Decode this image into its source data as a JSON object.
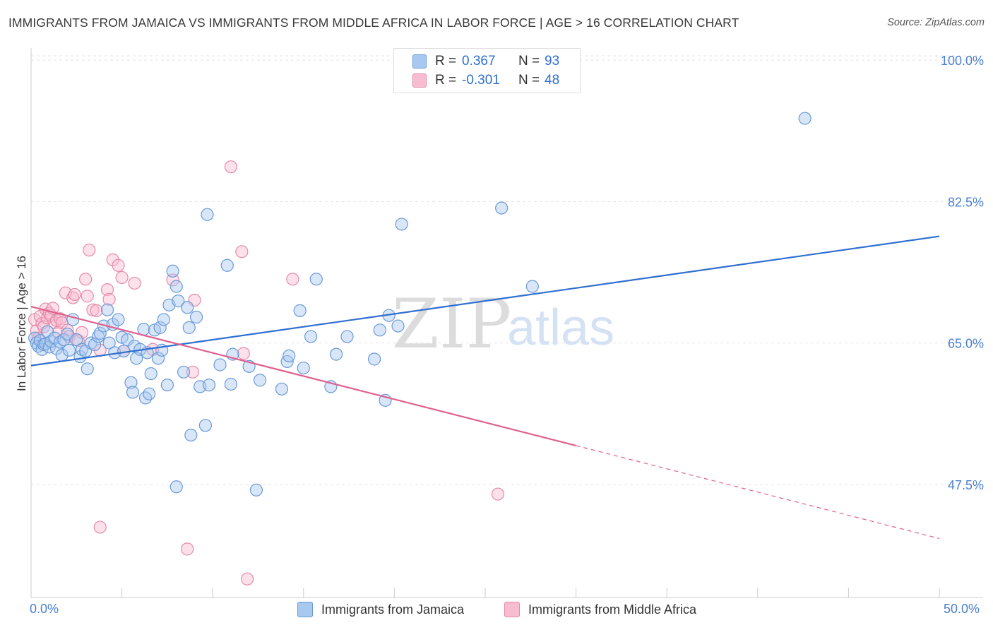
{
  "title": "IMMIGRANTS FROM JAMAICA VS IMMIGRANTS FROM MIDDLE AFRICA IN LABOR FORCE | AGE > 16 CORRELATION CHART",
  "source": "Source: ZipAtlas.com",
  "watermark": {
    "zip": "ZIP",
    "atlas": "atlas"
  },
  "legend": {
    "r_label": "R =",
    "n_label": "N =",
    "series": [
      {
        "name": "Immigrants from Jamaica",
        "r": "0.367",
        "n": "93",
        "fill": "#a8c8f0",
        "stroke": "#6a9ad8"
      },
      {
        "name": "Immigrants from Middle Africa",
        "r": "-0.301",
        "n": "48",
        "fill": "#f8bcd0",
        "stroke": "#e58aa8"
      }
    ]
  },
  "colors": {
    "blue": "#2f6fd0",
    "pink": "#e0608e",
    "tick_text": "#4a7fd0",
    "grid": "#e3e3e3"
  },
  "chart_data": {
    "type": "scatter",
    "title": "IMMIGRANTS FROM JAMAICA VS IMMIGRANTS FROM MIDDLE AFRICA IN LABOR FORCE | AGE > 16 CORRELATION CHART",
    "xlabel": "",
    "ylabel": "In Labor Force | Age > 16",
    "xlim": [
      0,
      50
    ],
    "ylim": [
      33.5,
      101.5
    ],
    "x_tick_labels": [
      "0.0%",
      "50.0%"
    ],
    "y_ticks": [
      47.5,
      65.0,
      82.5,
      100.0
    ],
    "y_tick_labels": [
      "47.5%",
      "65.0%",
      "82.5%",
      "100.0%"
    ],
    "series": [
      {
        "name": "Immigrants from Jamaica",
        "color": "#6a9ad8",
        "trend": {
          "x0": 0,
          "y0": 62.2,
          "x1": 50,
          "y1": 78.2
        },
        "points": [
          [
            0.2,
            65.6
          ],
          [
            0.3,
            65.0
          ],
          [
            0.4,
            64.6
          ],
          [
            0.5,
            65.3
          ],
          [
            0.6,
            64.2
          ],
          [
            0.7,
            64.8
          ],
          [
            0.8,
            64.9
          ],
          [
            0.9,
            66.4
          ],
          [
            1.0,
            64.5
          ],
          [
            1.1,
            65.2
          ],
          [
            1.3,
            65.6
          ],
          [
            1.4,
            64.3
          ],
          [
            1.6,
            65.1
          ],
          [
            1.7,
            63.5
          ],
          [
            1.8,
            65.4
          ],
          [
            2.0,
            66.1
          ],
          [
            2.1,
            64.1
          ],
          [
            2.3,
            67.9
          ],
          [
            2.5,
            65.4
          ],
          [
            2.7,
            63.3
          ],
          [
            2.8,
            64.2
          ],
          [
            3.0,
            64.0
          ],
          [
            3.1,
            61.8
          ],
          [
            3.3,
            65.0
          ],
          [
            3.5,
            64.8
          ],
          [
            3.7,
            65.8
          ],
          [
            3.8,
            66.2
          ],
          [
            4.0,
            67.1
          ],
          [
            4.2,
            69.1
          ],
          [
            4.3,
            65.0
          ],
          [
            4.5,
            67.3
          ],
          [
            4.6,
            63.8
          ],
          [
            4.8,
            67.9
          ],
          [
            5.0,
            65.7
          ],
          [
            5.1,
            64.0
          ],
          [
            5.3,
            65.4
          ],
          [
            5.5,
            60.1
          ],
          [
            5.6,
            58.9
          ],
          [
            5.7,
            64.6
          ],
          [
            5.8,
            63.1
          ],
          [
            6.0,
            64.2
          ],
          [
            6.2,
            66.7
          ],
          [
            6.3,
            58.2
          ],
          [
            6.4,
            63.8
          ],
          [
            6.5,
            58.7
          ],
          [
            6.6,
            61.2
          ],
          [
            6.8,
            66.6
          ],
          [
            7.0,
            63.1
          ],
          [
            7.1,
            66.9
          ],
          [
            7.2,
            64.1
          ],
          [
            7.3,
            67.9
          ],
          [
            7.5,
            59.8
          ],
          [
            7.6,
            69.7
          ],
          [
            7.8,
            73.9
          ],
          [
            8.0,
            72.0
          ],
          [
            8.0,
            47.2
          ],
          [
            8.1,
            70.2
          ],
          [
            8.4,
            61.4
          ],
          [
            8.6,
            69.4
          ],
          [
            8.7,
            66.9
          ],
          [
            8.8,
            53.6
          ],
          [
            9.1,
            68.2
          ],
          [
            9.3,
            59.6
          ],
          [
            9.6,
            54.8
          ],
          [
            9.7,
            80.9
          ],
          [
            9.8,
            59.8
          ],
          [
            10.4,
            62.3
          ],
          [
            10.8,
            74.6
          ],
          [
            11.0,
            59.9
          ],
          [
            11.1,
            63.6
          ],
          [
            12.0,
            62.1
          ],
          [
            12.4,
            46.8
          ],
          [
            12.6,
            60.4
          ],
          [
            13.8,
            59.3
          ],
          [
            14.1,
            62.7
          ],
          [
            14.2,
            63.4
          ],
          [
            14.8,
            69.0
          ],
          [
            15.0,
            61.9
          ],
          [
            15.4,
            65.8
          ],
          [
            15.7,
            72.9
          ],
          [
            16.5,
            59.6
          ],
          [
            16.8,
            63.6
          ],
          [
            17.4,
            65.8
          ],
          [
            18.9,
            63.0
          ],
          [
            19.2,
            66.6
          ],
          [
            19.5,
            57.9
          ],
          [
            19.7,
            68.4
          ],
          [
            20.2,
            67.1
          ],
          [
            20.4,
            79.7
          ],
          [
            25.9,
            81.7
          ],
          [
            27.6,
            72.0
          ],
          [
            42.6,
            92.8
          ]
        ]
      },
      {
        "name": "Immigrants from Middle Africa",
        "color": "#e58aa8",
        "trend": {
          "x0": 0,
          "y0": 69.5,
          "x1": 30,
          "y1": 52.3,
          "dash_to_x": 50,
          "dash_to_y": 40.8
        },
        "points": [
          [
            0.2,
            67.9
          ],
          [
            0.3,
            66.5
          ],
          [
            0.4,
            65.6
          ],
          [
            0.5,
            68.3
          ],
          [
            0.6,
            67.4
          ],
          [
            0.7,
            67.0
          ],
          [
            0.8,
            69.2
          ],
          [
            0.9,
            68.1
          ],
          [
            1.0,
            68.7
          ],
          [
            1.1,
            68.4
          ],
          [
            1.2,
            69.3
          ],
          [
            1.3,
            67.5
          ],
          [
            1.4,
            67.8
          ],
          [
            1.5,
            66.3
          ],
          [
            1.6,
            68.0
          ],
          [
            1.7,
            67.5
          ],
          [
            1.9,
            71.2
          ],
          [
            2.0,
            66.6
          ],
          [
            2.1,
            65.8
          ],
          [
            2.3,
            70.6
          ],
          [
            2.4,
            71.0
          ],
          [
            2.6,
            65.3
          ],
          [
            2.8,
            66.3
          ],
          [
            3.0,
            72.9
          ],
          [
            3.1,
            70.8
          ],
          [
            3.2,
            76.5
          ],
          [
            3.4,
            69.1
          ],
          [
            3.6,
            69.0
          ],
          [
            3.8,
            64.1
          ],
          [
            3.8,
            42.2
          ],
          [
            4.2,
            71.6
          ],
          [
            4.3,
            70.4
          ],
          [
            4.5,
            75.3
          ],
          [
            4.8,
            74.6
          ],
          [
            5.0,
            73.1
          ],
          [
            5.1,
            64.0
          ],
          [
            5.7,
            72.4
          ],
          [
            6.7,
            64.2
          ],
          [
            7.8,
            72.8
          ],
          [
            8.6,
            39.5
          ],
          [
            8.9,
            61.4
          ],
          [
            9.0,
            70.3
          ],
          [
            11.0,
            86.8
          ],
          [
            11.6,
            76.3
          ],
          [
            11.7,
            63.7
          ],
          [
            11.9,
            35.8
          ],
          [
            14.4,
            72.9
          ],
          [
            25.7,
            46.3
          ]
        ]
      }
    ]
  }
}
